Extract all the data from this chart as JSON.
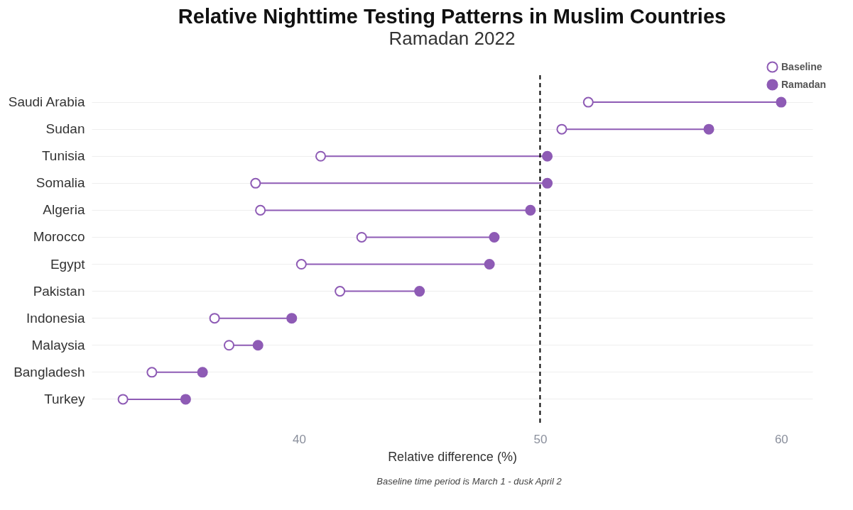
{
  "chart_data": {
    "type": "scatter",
    "title": "Relative Nighttime Testing Patterns in Muslim Countries",
    "subtitle": "Ramadan 2022",
    "xlabel": "Relative difference (%)",
    "orientation": "horizontal",
    "categories": [
      "Saudi Arabia",
      "Sudan",
      "Tunisia",
      "Somalia",
      "Algeria",
      "Morocco",
      "Egypt",
      "Pakistan",
      "Indonesia",
      "Malaysia",
      "Bangladesh",
      "Turkey"
    ],
    "series": [
      {
        "name": "Baseline",
        "color": "#8e5bb5",
        "values": [
          52.0,
          50.9,
          40.9,
          38.2,
          38.4,
          42.6,
          40.1,
          41.7,
          36.5,
          37.1,
          33.9,
          32.7
        ]
      },
      {
        "name": "Ramadan",
        "color": "#8e5bb5",
        "values": [
          60.0,
          57.0,
          50.3,
          50.3,
          49.6,
          48.1,
          47.9,
          45.0,
          39.7,
          38.3,
          36.0,
          35.3
        ]
      }
    ],
    "xlim": [
      31.4,
      61.3
    ],
    "xticks": [
      40,
      50,
      60
    ],
    "grid": "y",
    "legend": "top right",
    "marker": "circle",
    "ref_lines": [
      {
        "axis": "x",
        "value": 50,
        "color": "#000000",
        "line_style": "dashed"
      }
    ],
    "annotations": [
      "Baseline time period is March 1 - dusk April 2"
    ]
  }
}
